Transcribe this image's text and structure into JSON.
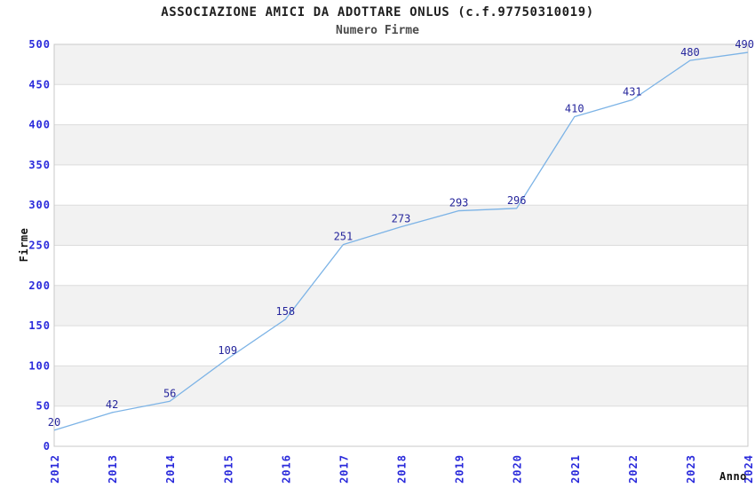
{
  "chart_data": {
    "type": "line",
    "title": "ASSOCIAZIONE AMICI DA ADOTTARE ONLUS (c.f.97750310019)",
    "subtitle": "Numero Firme",
    "x": [
      2012,
      2013,
      2014,
      2015,
      2016,
      2017,
      2018,
      2019,
      2020,
      2021,
      2022,
      2023,
      2024
    ],
    "values": [
      20,
      42,
      56,
      109,
      158,
      251,
      273,
      293,
      296,
      410,
      431,
      480,
      490
    ],
    "series_name": "Numero Firme",
    "xlabel": "Anno",
    "ylabel": "Firme",
    "ylim": [
      0,
      500
    ],
    "ytick_step": 50,
    "grid": true,
    "legend": "none",
    "band_style": "alternating-horizontal",
    "colors": {
      "line": "#7CB3E6",
      "tick_label": "#2A2ADB",
      "value_label": "#26269C",
      "band": "#F2F2F2",
      "gridline": "#DCDCDC",
      "border": "#C8C8C8",
      "title": "#1F1F1F",
      "subtitle": "#4C4C4C",
      "axis_title": "#111111",
      "background": "#FFFFFF"
    }
  }
}
